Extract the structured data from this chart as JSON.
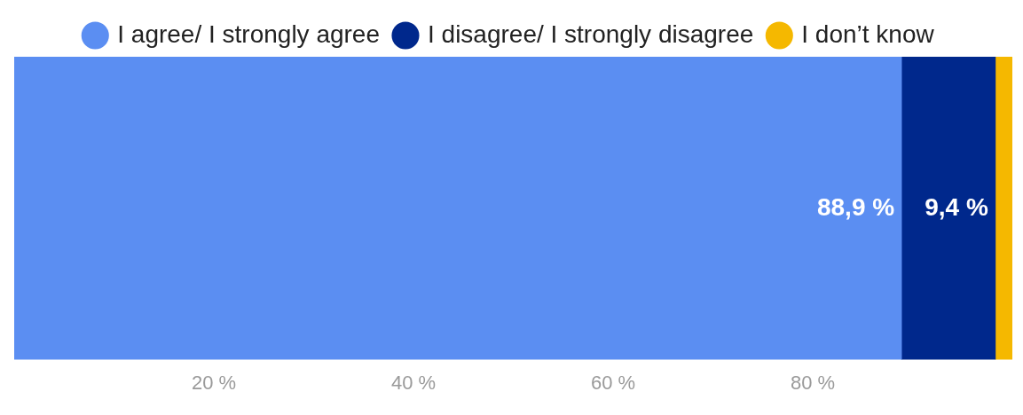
{
  "chart_data": {
    "type": "bar",
    "orientation": "horizontal",
    "stacked": true,
    "categories": [
      null
    ],
    "series": [
      {
        "name": "I agree/ I strongly agree",
        "color": "#5b8ef2",
        "values": [
          88.9
        ],
        "value_labels": [
          "88,9 %"
        ]
      },
      {
        "name": "I disagree/ I strongly disagree",
        "color": "#00288c",
        "values": [
          9.4
        ],
        "value_labels": [
          "9,4 %"
        ]
      },
      {
        "name": "I don’t know",
        "color": "#f5b800",
        "values": [
          1.7
        ],
        "value_labels": [
          null
        ]
      }
    ],
    "xlim": [
      0,
      100
    ],
    "xticks": [
      {
        "value": 20,
        "label": "20 %"
      },
      {
        "value": 40,
        "label": "40 %"
      },
      {
        "value": 60,
        "label": "60 %"
      },
      {
        "value": 80,
        "label": "80 %"
      }
    ],
    "grid": false,
    "legend": "top",
    "tick_labels": "x"
  }
}
